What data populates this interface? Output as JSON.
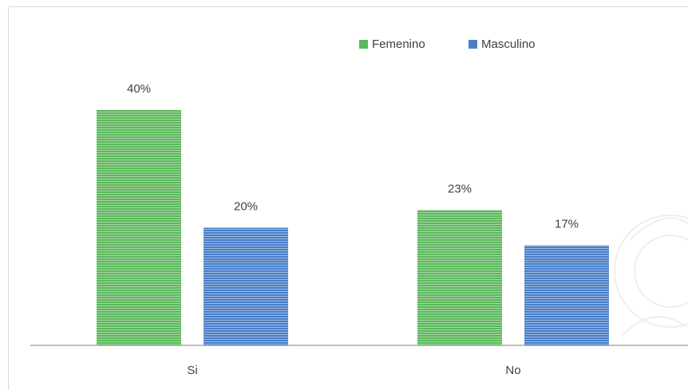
{
  "chart_data": {
    "type": "bar",
    "categories": [
      "Si",
      "No"
    ],
    "series": [
      {
        "name": "Femenino",
        "color": "#5cb85c",
        "values": [
          40,
          23
        ],
        "value_labels": [
          "40%",
          "23%"
        ]
      },
      {
        "name": "Masculino",
        "color": "#4a7fc8",
        "values": [
          20,
          17
        ],
        "value_labels": [
          "20%",
          "17%"
        ]
      }
    ]
  }
}
